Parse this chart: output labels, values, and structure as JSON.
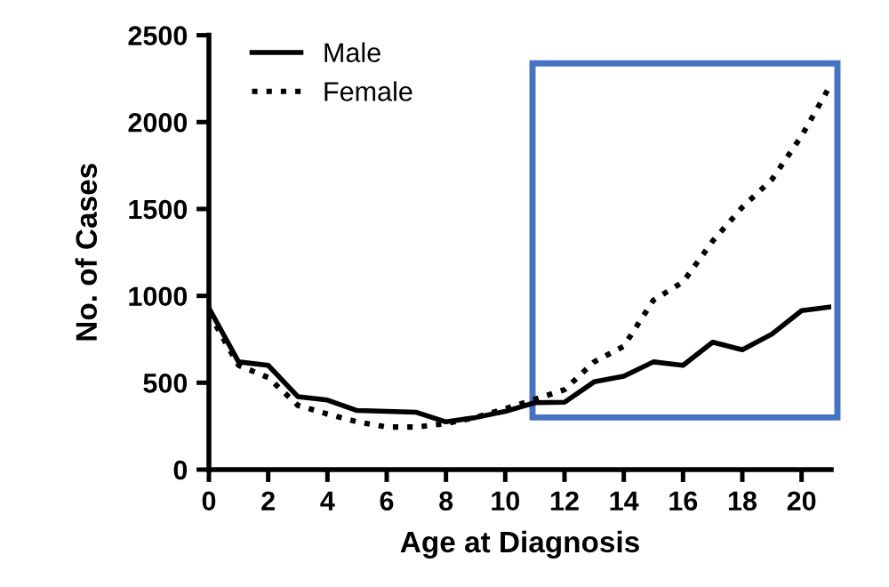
{
  "chart_data": {
    "type": "line",
    "xlabel": "Age at Diagnosis",
    "ylabel": "No. of Cases",
    "x": [
      0,
      1,
      2,
      3,
      4,
      5,
      6,
      7,
      8,
      9,
      10,
      11,
      12,
      13,
      14,
      15,
      16,
      17,
      18,
      19,
      20,
      21
    ],
    "series": [
      {
        "name": "Male",
        "color": "#000000",
        "line_style": "solid",
        "values": [
          930,
          620,
          600,
          420,
          400,
          340,
          335,
          330,
          275,
          300,
          335,
          385,
          388,
          505,
          537,
          620,
          600,
          733,
          690,
          780,
          915,
          937
        ]
      },
      {
        "name": "Female",
        "color": "#000000",
        "line_style": "dotted",
        "values": [
          900,
          600,
          530,
          370,
          320,
          275,
          245,
          245,
          265,
          300,
          350,
          405,
          460,
          620,
          710,
          975,
          1080,
          1315,
          1510,
          1670,
          1920,
          2220
        ]
      }
    ],
    "xlim": [
      0,
      21
    ],
    "ylim": [
      0,
      2500
    ],
    "xticks": [
      0,
      2,
      4,
      6,
      8,
      10,
      12,
      14,
      16,
      18,
      20
    ],
    "yticks": [
      0,
      500,
      1000,
      1500,
      2000,
      2500
    ],
    "grid": false,
    "legend": "top left",
    "marker": "none"
  }
}
